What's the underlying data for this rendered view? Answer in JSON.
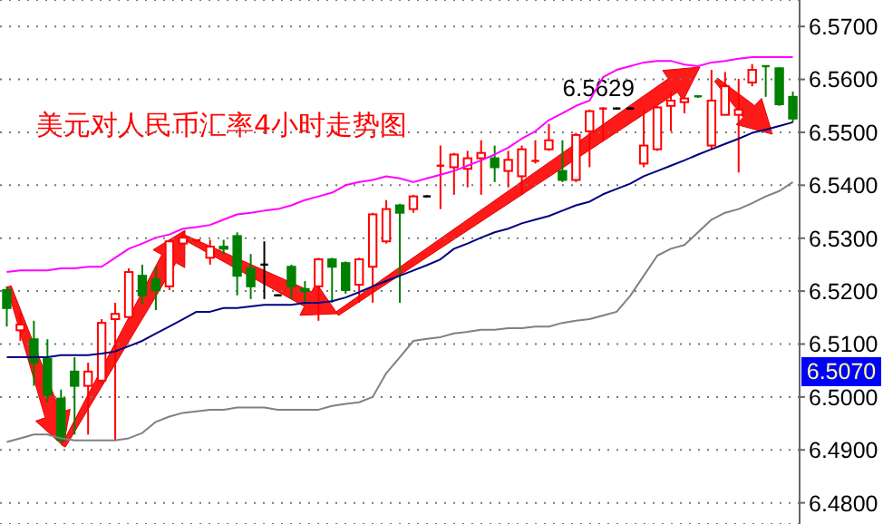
{
  "chart_data": {
    "type": "candlestick",
    "title": "美元对人民币汇率4小时走势图",
    "categories": [
      null,
      null,
      null,
      null,
      null,
      null,
      null,
      null,
      null,
      null,
      null,
      null,
      null,
      null,
      null,
      null,
      null,
      null,
      null,
      null,
      null,
      null,
      null,
      null,
      null,
      null,
      null,
      null,
      null,
      null,
      null,
      null,
      null,
      null,
      null,
      null,
      null,
      null,
      null,
      null,
      null,
      null,
      null,
      null,
      null,
      null,
      null,
      null,
      null,
      null,
      null,
      null,
      null,
      null,
      null,
      null,
      null,
      null,
      null
    ],
    "ohlc": [
      [
        6.5202,
        6.5209,
        6.5133,
        6.5168
      ],
      [
        6.5126,
        6.5161,
        6.5106,
        6.5137
      ],
      [
        6.5109,
        6.5144,
        6.5021,
        6.5065
      ],
      [
        6.5072,
        6.5109,
        6.499,
        6.5004
      ],
      [
        6.4997,
        6.5014,
        6.4912,
        6.4919
      ],
      [
        6.5048,
        6.5075,
        6.4929,
        6.5021
      ],
      [
        6.5021,
        6.5065,
        6.4929,
        6.5048
      ],
      [
        6.5031,
        6.5147,
        6.5024,
        6.514
      ],
      [
        6.5147,
        6.5178,
        6.4919,
        6.5157
      ],
      [
        6.5151,
        6.5243,
        6.5144,
        6.5236
      ],
      [
        6.5229,
        6.525,
        6.5175,
        6.5192
      ],
      [
        6.5222,
        6.5246,
        6.5164,
        6.5202
      ],
      [
        6.5209,
        6.5297,
        6.5202,
        6.5294
      ],
      [
        6.529,
        6.5311,
        6.529,
        6.5301
      ],
      [
        6.5294,
        6.5297,
        6.5292,
        6.5296
      ],
      [
        6.5263,
        6.5297,
        6.525,
        6.5284
      ],
      [
        6.5284,
        6.5297,
        6.527,
        6.528
      ],
      [
        6.5304,
        6.5311,
        6.5192,
        6.5229
      ],
      [
        6.5243,
        6.527,
        6.5185,
        6.5209
      ],
      [
        6.525,
        6.5294,
        6.5185,
        6.525
      ],
      [
        6.5192,
        6.5194,
        6.519,
        6.5192
      ],
      [
        6.5246,
        6.525,
        6.5185,
        6.5209
      ],
      [
        6.5204,
        6.5219,
        6.5175,
        6.52
      ],
      [
        6.5209,
        6.5263,
        6.5144,
        6.526
      ],
      [
        6.526,
        6.5263,
        6.5178,
        6.5246
      ],
      [
        6.5253,
        6.5256,
        6.5195,
        6.5202
      ],
      [
        6.5212,
        6.5263,
        6.5178,
        6.526
      ],
      [
        6.5246,
        6.5348,
        6.5178,
        6.5345
      ],
      [
        6.5294,
        6.5372,
        6.529,
        6.5355
      ],
      [
        6.5362,
        6.5365,
        6.5178,
        6.5348
      ],
      [
        6.5355,
        6.5382,
        6.5348,
        6.5379
      ],
      [
        6.5379,
        6.5381,
        6.5377,
        6.5379
      ],
      [
        6.5434,
        6.5475,
        6.5355,
        6.5437
      ],
      [
        6.5434,
        6.5461,
        6.5382,
        6.5458
      ],
      [
        6.5431,
        6.5465,
        6.5396,
        6.5451
      ],
      [
        6.5451,
        6.5485,
        6.5382,
        6.5461
      ],
      [
        6.5451,
        6.5475,
        6.5406,
        6.5434
      ],
      [
        6.5427,
        6.5465,
        6.5396,
        6.5448
      ],
      [
        6.5417,
        6.5475,
        6.5382,
        6.5468
      ],
      [
        6.5444,
        6.5485,
        6.5441,
        6.5446
      ],
      [
        6.5468,
        6.5516,
        6.5465,
        6.5485
      ],
      [
        6.5427,
        6.5485,
        6.5406,
        6.541
      ],
      [
        6.541,
        6.5499,
        6.5406,
        6.5495
      ],
      [
        6.5502,
        6.5543,
        6.5434,
        6.554
      ],
      [
        6.5543,
        6.5547,
        6.5485,
        6.5545
      ],
      [
        6.5545,
        6.5547,
        6.5543,
        6.5545
      ],
      [
        6.5545,
        6.5547,
        6.5543,
        6.5545
      ],
      [
        6.5441,
        6.5543,
        6.5434,
        6.5475
      ],
      [
        6.5468,
        6.555,
        6.5465,
        6.5547
      ],
      [
        6.555,
        6.5577,
        6.5502,
        6.556
      ],
      [
        6.5557,
        6.5567,
        6.5536,
        6.5564
      ],
      [
        6.5568,
        6.5569,
        6.5565,
        6.5566
      ],
      [
        6.5475,
        6.5618,
        6.5468,
        6.556
      ],
      [
        6.5533,
        6.5614,
        6.5533,
        6.5587
      ],
      [
        6.5533,
        6.5601,
        6.5424,
        6.5543
      ],
      [
        6.5594,
        6.5629,
        6.5587,
        6.5618
      ],
      [
        6.5625,
        6.5625,
        6.5567,
        6.5623
      ],
      [
        6.5621,
        6.5623,
        6.555,
        6.5553
      ],
      [
        6.5567,
        6.5577,
        6.5519,
        6.5526
      ]
    ],
    "colors": [
      "#008000",
      "#ff0000",
      "#008000",
      "#008000",
      "#008000",
      "#008000",
      "#ff0000",
      "#ff0000",
      "#ff0000",
      "#ff0000",
      "#008000",
      "#008000",
      "#ff0000",
      "#ff0000",
      "#ff0000",
      "#ff0000",
      "#008000",
      "#008000",
      "#008000",
      "#000000",
      "#000000",
      "#008000",
      "#008000",
      "#ff0000",
      "#008000",
      "#008000",
      "#ff0000",
      "#ff0000",
      "#ff0000",
      "#008000",
      "#ff0000",
      "#000000",
      "#ff0000",
      "#ff0000",
      "#ff0000",
      "#ff0000",
      "#008000",
      "#ff0000",
      "#ff0000",
      "#ff0000",
      "#ff0000",
      "#008000",
      "#ff0000",
      "#ff0000",
      "#ff0000",
      "#000000",
      "#000000",
      "#ff0000",
      "#ff0000",
      "#ff0000",
      "#ff0000",
      "#008000",
      "#ff0000",
      "#ff0000",
      "#ff0000",
      "#ff0000",
      "#008000",
      "#008000",
      "#008000"
    ],
    "series": [
      {
        "type": "line",
        "color": "#ff00ff",
        "values": [
          6.5236,
          6.5239,
          6.5239,
          6.5239,
          6.5243,
          6.5243,
          6.5246,
          6.5246,
          6.5263,
          6.528,
          6.529,
          6.5301,
          6.5307,
          6.5318,
          6.5321,
          6.5325,
          6.5335,
          6.5345,
          6.5348,
          6.5352,
          6.5355,
          6.5362,
          6.5372,
          6.5379,
          6.5386,
          6.54,
          6.5406,
          6.541,
          6.5417,
          6.5413,
          6.5406,
          6.5413,
          6.542,
          6.5427,
          6.5437,
          6.5447,
          6.5458,
          6.5471,
          6.5488,
          6.5502,
          6.5523,
          6.5536,
          6.555,
          6.556,
          6.5604,
          6.5618,
          6.5625,
          6.5632,
          6.5635,
          6.5635,
          6.5628,
          6.5625,
          6.5632,
          6.5635,
          6.5639,
          6.5642,
          6.5642,
          6.5642,
          6.5642
        ]
      },
      {
        "type": "line",
        "color": "#000080",
        "values": [
          6.5075,
          6.5075,
          6.5075,
          6.5075,
          6.5079,
          6.5079,
          6.5079,
          6.5082,
          6.5086,
          6.5096,
          6.5106,
          6.512,
          6.5133,
          6.5147,
          6.5161,
          6.5161,
          6.5168,
          6.5168,
          6.5171,
          6.5174,
          6.5174,
          6.5174,
          6.5178,
          6.5178,
          6.5181,
          6.5188,
          6.5198,
          6.5209,
          6.5219,
          6.5229,
          6.5239,
          6.5249,
          6.526,
          6.528,
          6.529,
          6.5301,
          6.5311,
          6.5318,
          6.5328,
          6.5335,
          6.5342,
          6.5352,
          6.5362,
          6.5369,
          6.5383,
          6.5393,
          6.5403,
          6.5417,
          6.5427,
          6.5437,
          6.5447,
          6.5458,
          6.5468,
          6.5478,
          6.5488,
          6.5499,
          6.5505,
          6.5512,
          6.5519
        ]
      },
      {
        "type": "line",
        "color": "#808080",
        "values": [
          6.4915,
          6.4922,
          6.4929,
          6.4929,
          6.4922,
          6.4918,
          6.4918,
          6.4918,
          6.4918,
          6.4922,
          6.4932,
          6.4953,
          6.4963,
          6.497,
          6.4973,
          6.4976,
          6.4976,
          6.498,
          6.498,
          6.498,
          6.4976,
          6.4976,
          6.4976,
          6.4976,
          6.4983,
          6.4987,
          6.499,
          6.5,
          6.5045,
          6.5075,
          6.5106,
          6.511,
          6.5113,
          6.512,
          6.5123,
          6.5127,
          6.5127,
          6.513,
          6.513,
          6.5133,
          6.5133,
          6.514,
          6.5144,
          6.5147,
          6.5154,
          6.5161,
          6.5191,
          6.5229,
          6.5267,
          6.528,
          6.5287,
          6.5311,
          6.5335,
          6.5348,
          6.5355,
          6.5366,
          6.5379,
          6.5389,
          6.5406
        ]
      }
    ],
    "ylim": [
      6.476,
      6.575
    ],
    "yticks": [
      {
        "value": 6.48,
        "label": "6.4800"
      },
      {
        "value": 6.49,
        "label": "6.4900"
      },
      {
        "value": 6.5,
        "label": "6.5000"
      },
      {
        "value": 6.51,
        "label": "6.5100"
      },
      {
        "value": 6.52,
        "label": "6.5200"
      },
      {
        "value": 6.53,
        "label": "6.5300"
      },
      {
        "value": 6.54,
        "label": "6.5400"
      },
      {
        "value": 6.55,
        "label": "6.5500"
      },
      {
        "value": 6.56,
        "label": "6.5600"
      },
      {
        "value": 6.57,
        "label": "6.5700"
      }
    ],
    "annotations": [
      "6.5629",
      "6.5070"
    ],
    "grid": "y",
    "tick_labels": "y"
  }
}
